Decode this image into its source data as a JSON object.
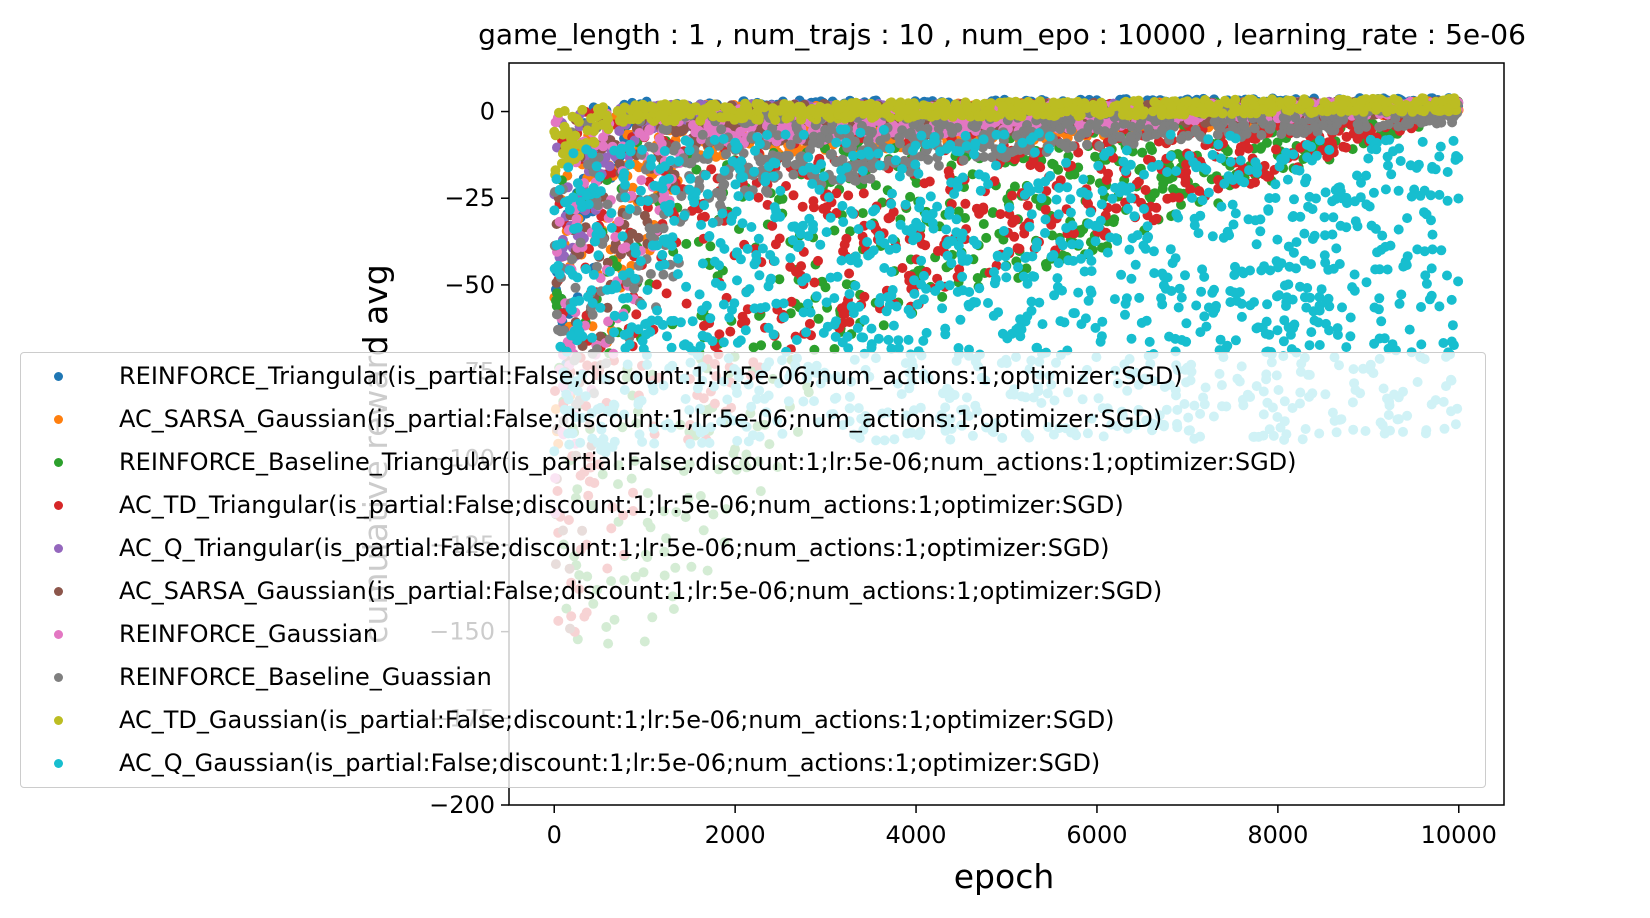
{
  "chart_data": {
    "type": "scatter",
    "title": "game_length : 1 , num_trajs : 10 , num_epo : 10000 , learning_rate : 5e-06",
    "xlabel": "epoch",
    "ylabel": "cumulative reward avg",
    "xlim": [
      -500,
      10500
    ],
    "ylim": [
      -200,
      14
    ],
    "xticks": [
      0,
      2000,
      4000,
      6000,
      8000,
      10000
    ],
    "yticks": [
      0,
      -25,
      -50,
      -75,
      -100,
      -125,
      -150,
      -175,
      -200
    ],
    "ytick_labels": [
      "0",
      "−25",
      "−50",
      "−75",
      "−100",
      "−125",
      "−150",
      "−175",
      "−200"
    ],
    "legend_position": "lower-center",
    "series": [
      {
        "name": "REINFORCE_Triangular(is_partial:False;discount:1;lr:5e-06;num_actions:1;optimizer:SGD)",
        "color": "#1f77b4",
        "x_range": [
          0,
          10000
        ],
        "band": [
          [
            0,
            -100,
            0
          ],
          [
            800,
            -5,
            3
          ],
          [
            10000,
            1,
            4
          ]
        ]
      },
      {
        "name": "AC_SARSA_Gaussian(is_partial:False;discount:1;lr:5e-06;num_actions:1;optimizer:SGD)",
        "color": "#ff7f0e",
        "x_range": [
          0,
          10000
        ],
        "band": [
          [
            0,
            -100,
            0
          ],
          [
            1500,
            -15,
            2
          ],
          [
            10000,
            0,
            3
          ]
        ]
      },
      {
        "name": "REINFORCE_Baseline_Triangular(is_partial:False;discount:1;lr:5e-06;num_actions:1;optimizer:SGD)",
        "color": "#2ca02c",
        "x_range": [
          0,
          10000
        ],
        "band": [
          [
            0,
            -160,
            0
          ],
          [
            1500,
            -150,
            0
          ],
          [
            2600,
            -100,
            0
          ],
          [
            3000,
            -70,
            2
          ],
          [
            10000,
            0,
            3
          ]
        ]
      },
      {
        "name": "AC_TD_Triangular(is_partial:False;discount:1;lr:5e-06;num_actions:1;optimizer:SGD)",
        "color": "#d62728",
        "x_range": [
          0,
          10000
        ],
        "band": [
          [
            0,
            -160,
            0
          ],
          [
            1200,
            -110,
            0
          ],
          [
            2500,
            -70,
            2
          ],
          [
            10000,
            0,
            3
          ]
        ]
      },
      {
        "name": "AC_Q_Triangular(is_partial:False;discount:1;lr:5e-06;num_actions:1;optimizer:SGD)",
        "color": "#9467bd",
        "x_range": [
          0,
          10000
        ],
        "band": [
          [
            0,
            -60,
            0
          ],
          [
            1000,
            -5,
            2
          ],
          [
            10000,
            0,
            3
          ]
        ]
      },
      {
        "name": "AC_SARSA_Gaussian(is_partial:False;discount:1;lr:5e-06;num_actions:1;optimizer:SGD)",
        "color": "#8c564b",
        "x_range": [
          0,
          10000
        ],
        "band": [
          [
            0,
            -190,
            0
          ],
          [
            500,
            -80,
            0
          ],
          [
            1500,
            -10,
            2
          ],
          [
            10000,
            0,
            3
          ]
        ]
      },
      {
        "name": "REINFORCE_Gaussian",
        "color": "#e377c2",
        "x_range": [
          0,
          10000
        ],
        "band": [
          [
            0,
            -120,
            0
          ],
          [
            1500,
            -10,
            1
          ],
          [
            10000,
            0,
            3
          ]
        ]
      },
      {
        "name": "REINFORCE_Baseline_Guassian",
        "color": "#7f7f7f",
        "x_range": [
          0,
          10000
        ],
        "band": [
          [
            0,
            -100,
            0
          ],
          [
            2000,
            -25,
            0
          ],
          [
            6000,
            -10,
            1
          ],
          [
            9000,
            -5,
            2
          ],
          [
            10000,
            -3,
            2
          ]
        ]
      },
      {
        "name": "AC_TD_Gaussian(is_partial:False;discount:1;lr:5e-06;num_actions:1;optimizer:SGD)",
        "color": "#bcbd22",
        "x_range": [
          0,
          10000
        ],
        "band": [
          [
            0,
            -20,
            0
          ],
          [
            700,
            -3,
            2
          ],
          [
            10000,
            0,
            4
          ]
        ]
      },
      {
        "name": "AC_Q_Gaussian(is_partial:False;discount:1;lr:5e-06;num_actions:1;optimizer:SGD)",
        "color": "#17becf",
        "x_range": [
          0,
          10000
        ],
        "band": [
          [
            0,
            -100,
            -10
          ],
          [
            3000,
            -95,
            -5
          ],
          [
            10000,
            -95,
            -8
          ]
        ]
      }
    ]
  }
}
